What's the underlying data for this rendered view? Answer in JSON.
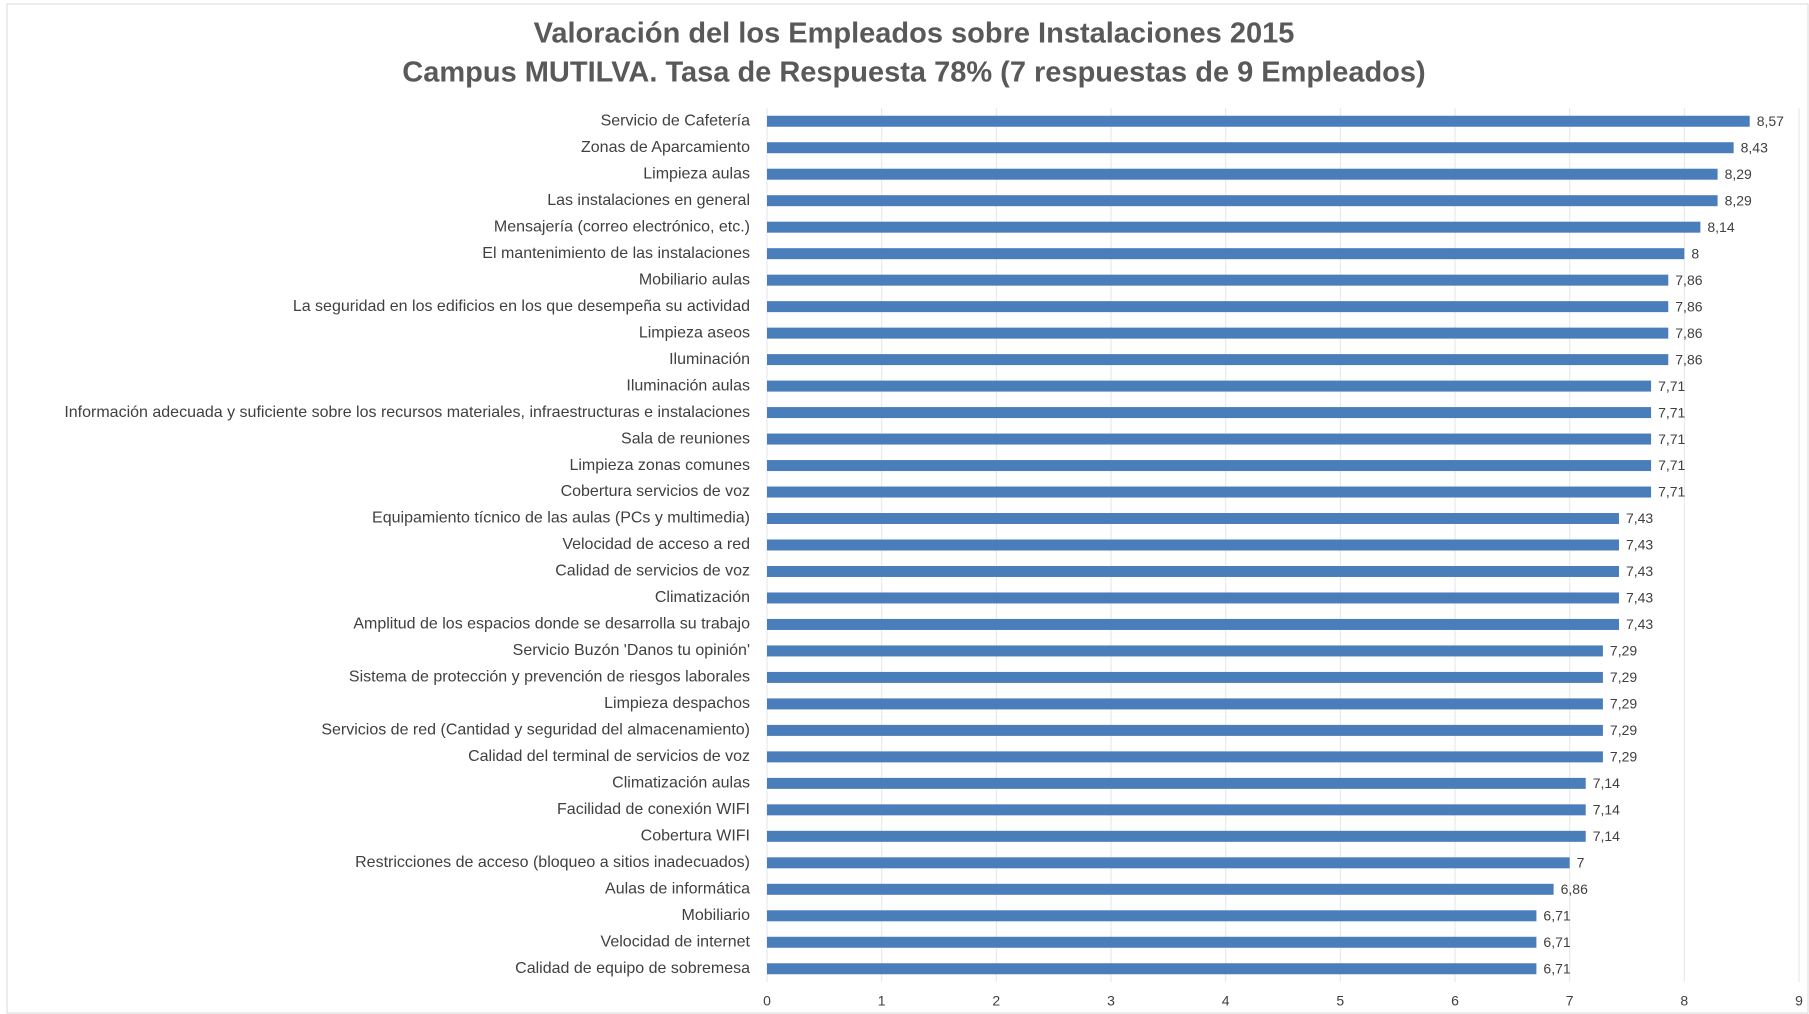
{
  "chart_data": {
    "type": "barh",
    "title": "Valoración del los Empleados sobre Instalaciones 2015",
    "subtitle": "Campus MUTILVA. Tasa de Respuesta 78% (7 respuestas de 9 Empleados)",
    "categories": [
      "Servicio de Cafetería",
      "Zonas de Aparcamiento",
      "Limpieza aulas",
      "Las instalaciones en general",
      "Mensajería (correo electrónico, etc.)",
      "El mantenimiento de las instalaciones",
      "Mobiliario aulas",
      "La seguridad en los edificios en los que desempeña su actividad",
      "Limpieza aseos",
      "Iluminación",
      "Iluminación aulas",
      "Información adecuada y suficiente sobre los recursos materiales, infraestructuras e instalaciones",
      "Sala de reuniones",
      "Limpieza zonas comunes",
      "Cobertura servicios de voz",
      "Equipamiento tícnico de las aulas (PCs y multimedia)",
      "Velocidad de acceso a red",
      "Calidad de servicios de voz",
      "Climatización",
      "Amplitud de los espacios donde se desarrolla su trabajo",
      "Servicio Buzón 'Danos tu opinión'",
      "Sistema de protección y prevención de riesgos laborales",
      "Limpieza despachos",
      "Servicios de red (Cantidad y seguridad del almacenamiento)",
      "Calidad del terminal de servicios de voz",
      "Climatización aulas",
      "Facilidad de conexión WIFI",
      "Cobertura WIFI",
      "Restricciones de acceso (bloqueo a sitios inadecuados)",
      "Aulas de informática",
      "Mobiliario",
      "Velocidad de internet",
      "Calidad de equipo de sobremesa"
    ],
    "values": [
      8.57,
      8.43,
      8.29,
      8.29,
      8.14,
      8,
      7.86,
      7.86,
      7.86,
      7.86,
      7.71,
      7.71,
      7.71,
      7.71,
      7.71,
      7.43,
      7.43,
      7.43,
      7.43,
      7.43,
      7.29,
      7.29,
      7.29,
      7.29,
      7.29,
      7.14,
      7.14,
      7.14,
      7,
      6.86,
      6.71,
      6.71,
      6.71
    ],
    "value_labels": [
      "8,57",
      "8,43",
      "8,29",
      "8,29",
      "8,14",
      "8",
      "7,86",
      "7,86",
      "7,86",
      "7,86",
      "7,71",
      "7,71",
      "7,71",
      "7,71",
      "7,71",
      "7,43",
      "7,43",
      "7,43",
      "7,43",
      "7,43",
      "7,29",
      "7,29",
      "7,29",
      "7,29",
      "7,29",
      "7,14",
      "7,14",
      "7,14",
      "7",
      "6,86",
      "6,71",
      "6,71",
      "6,71"
    ],
    "color": "#4a7ebb",
    "xlim": [
      0,
      9
    ],
    "xticks": [
      0,
      1,
      2,
      3,
      4,
      5,
      6,
      7,
      8,
      9
    ],
    "grid": true
  }
}
